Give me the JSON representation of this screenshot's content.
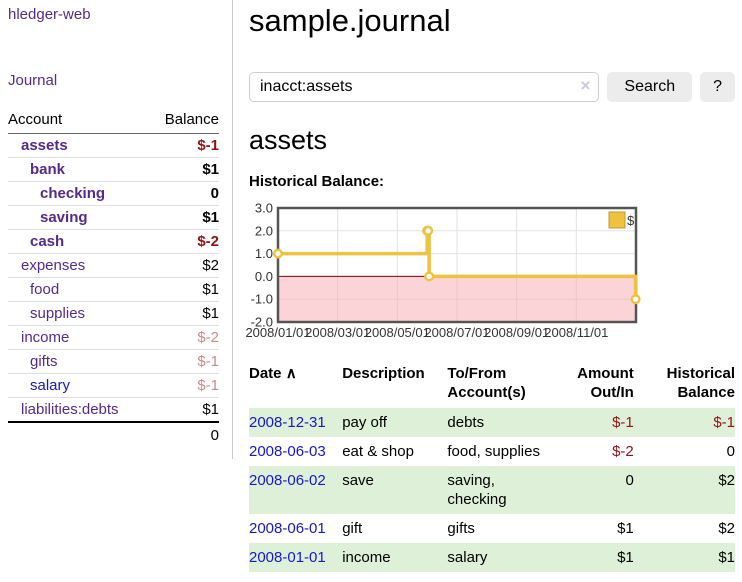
{
  "app": {
    "title_link": "hledger-web",
    "nav_journal": "Journal"
  },
  "colors": {
    "link_purple": "#552a90",
    "link_blue": "#1517d1",
    "negative_strong": "#911116",
    "negative_dim": "#c88c8c",
    "row_stripe_green": "#dff0d8",
    "chart_series_yellow": "#edc240",
    "chart_negative_fill": "#f7aab0",
    "chart_zero_line": "#8b0000",
    "button_gray": "#ececec"
  },
  "sidebar": {
    "table_headers": {
      "account": "Account",
      "balance": "Balance"
    },
    "accounts": [
      {
        "name": "assets",
        "level": 1,
        "bold": true,
        "link": "purple",
        "balance": "$-1",
        "balance_class": "neg"
      },
      {
        "name": "bank",
        "level": 2,
        "bold": true,
        "link": "purple",
        "balance": "$1",
        "balance_class": ""
      },
      {
        "name": "checking",
        "level": 3,
        "bold": true,
        "link": "purple",
        "balance": "0",
        "balance_class": ""
      },
      {
        "name": "saving",
        "level": 3,
        "bold": true,
        "link": "purple",
        "balance": "$1",
        "balance_class": ""
      },
      {
        "name": "cash",
        "level": 2,
        "bold": true,
        "link": "purple",
        "balance": "$-2",
        "balance_class": "neg"
      },
      {
        "name": "expenses",
        "level": 1,
        "bold": false,
        "link": "purple",
        "balance": "$2",
        "balance_class": ""
      },
      {
        "name": "food",
        "level": 2,
        "bold": false,
        "link": "purple",
        "balance": "$1",
        "balance_class": ""
      },
      {
        "name": "supplies",
        "level": 2,
        "bold": false,
        "link": "purple",
        "balance": "$1",
        "balance_class": ""
      },
      {
        "name": "income",
        "level": 1,
        "bold": false,
        "link": "purple",
        "balance": "$-2",
        "balance_class": "dimneg"
      },
      {
        "name": "gifts",
        "level": 2,
        "bold": false,
        "link": "purple",
        "balance": "$-1",
        "balance_class": "dimneg"
      },
      {
        "name": "salary",
        "level": 2,
        "bold": false,
        "link": "blue",
        "balance": "$-1",
        "balance_class": "dimneg"
      },
      {
        "name": "liabilities:debts",
        "level": 1,
        "bold": false,
        "link": "purple",
        "balance": "$1",
        "balance_class": ""
      }
    ],
    "total": "0"
  },
  "main": {
    "title": "sample.journal",
    "search": {
      "value": "inacct:assets",
      "clear_icon": "×",
      "button": "Search",
      "help_button": "?"
    },
    "account_heading": "assets",
    "chart_label": "Historical Balance:"
  },
  "chart_data": {
    "type": "line",
    "title": "Historical Balance",
    "step": true,
    "series": [
      {
        "name": "$",
        "color": "#edc240",
        "points": [
          [
            "2008-01-01",
            1
          ],
          [
            "2008-06-01",
            2
          ],
          [
            "2008-06-02",
            2
          ],
          [
            "2008-06-03",
            0
          ],
          [
            "2008-12-31",
            -1
          ]
        ]
      }
    ],
    "x_range": [
      "2008-01-01",
      "2009-01-01"
    ],
    "x_ticks": [
      "2008/01/01",
      "2008/03/01",
      "2008/05/01",
      "2008/07/01",
      "2008/09/01",
      "2008/11/01"
    ],
    "y_ticks": [
      "3.0",
      "2.0",
      "1.0",
      "0.0",
      "-1.0",
      "-2.0"
    ],
    "ylim": [
      -2,
      3
    ],
    "grid": true,
    "legend": {
      "label": "$",
      "position": "top-right"
    },
    "negative_region_fill": "#f7aab0",
    "zero_line_color": "#8b0000",
    "border_color": "#545454"
  },
  "register": {
    "sort_icon": "∧",
    "headers": [
      {
        "line1": "Date",
        "line2": "",
        "align": "left",
        "sorted": true
      },
      {
        "line1": "Description",
        "line2": "",
        "align": "left"
      },
      {
        "line1": "To/From",
        "line2": "Account(s)",
        "align": "left"
      },
      {
        "line1": "Amount",
        "line2": "Out/In",
        "align": "right"
      },
      {
        "line1": "Historical",
        "line2": "Balance",
        "align": "right"
      }
    ],
    "rows": [
      {
        "date": "2008-12-31",
        "description": "pay off",
        "accounts": "debts",
        "amount": "$-1",
        "amount_class": "neg",
        "balance": "$-1",
        "balance_class": "neg",
        "stripe": true
      },
      {
        "date": "2008-06-03",
        "description": "eat & shop",
        "accounts": "food, supplies",
        "amount": "$-2",
        "amount_class": "neg",
        "balance": "0",
        "balance_class": "",
        "stripe": false
      },
      {
        "date": "2008-06-02",
        "description": "save",
        "accounts": "saving, checking",
        "amount": "0",
        "amount_class": "",
        "balance": "$2",
        "balance_class": "",
        "stripe": true
      },
      {
        "date": "2008-06-01",
        "description": "gift",
        "accounts": "gifts",
        "amount": "$1",
        "amount_class": "",
        "balance": "$2",
        "balance_class": "",
        "stripe": false
      },
      {
        "date": "2008-01-01",
        "description": "income",
        "accounts": "salary",
        "amount": "$1",
        "amount_class": "",
        "balance": "$1",
        "balance_class": "",
        "stripe": true
      }
    ]
  }
}
